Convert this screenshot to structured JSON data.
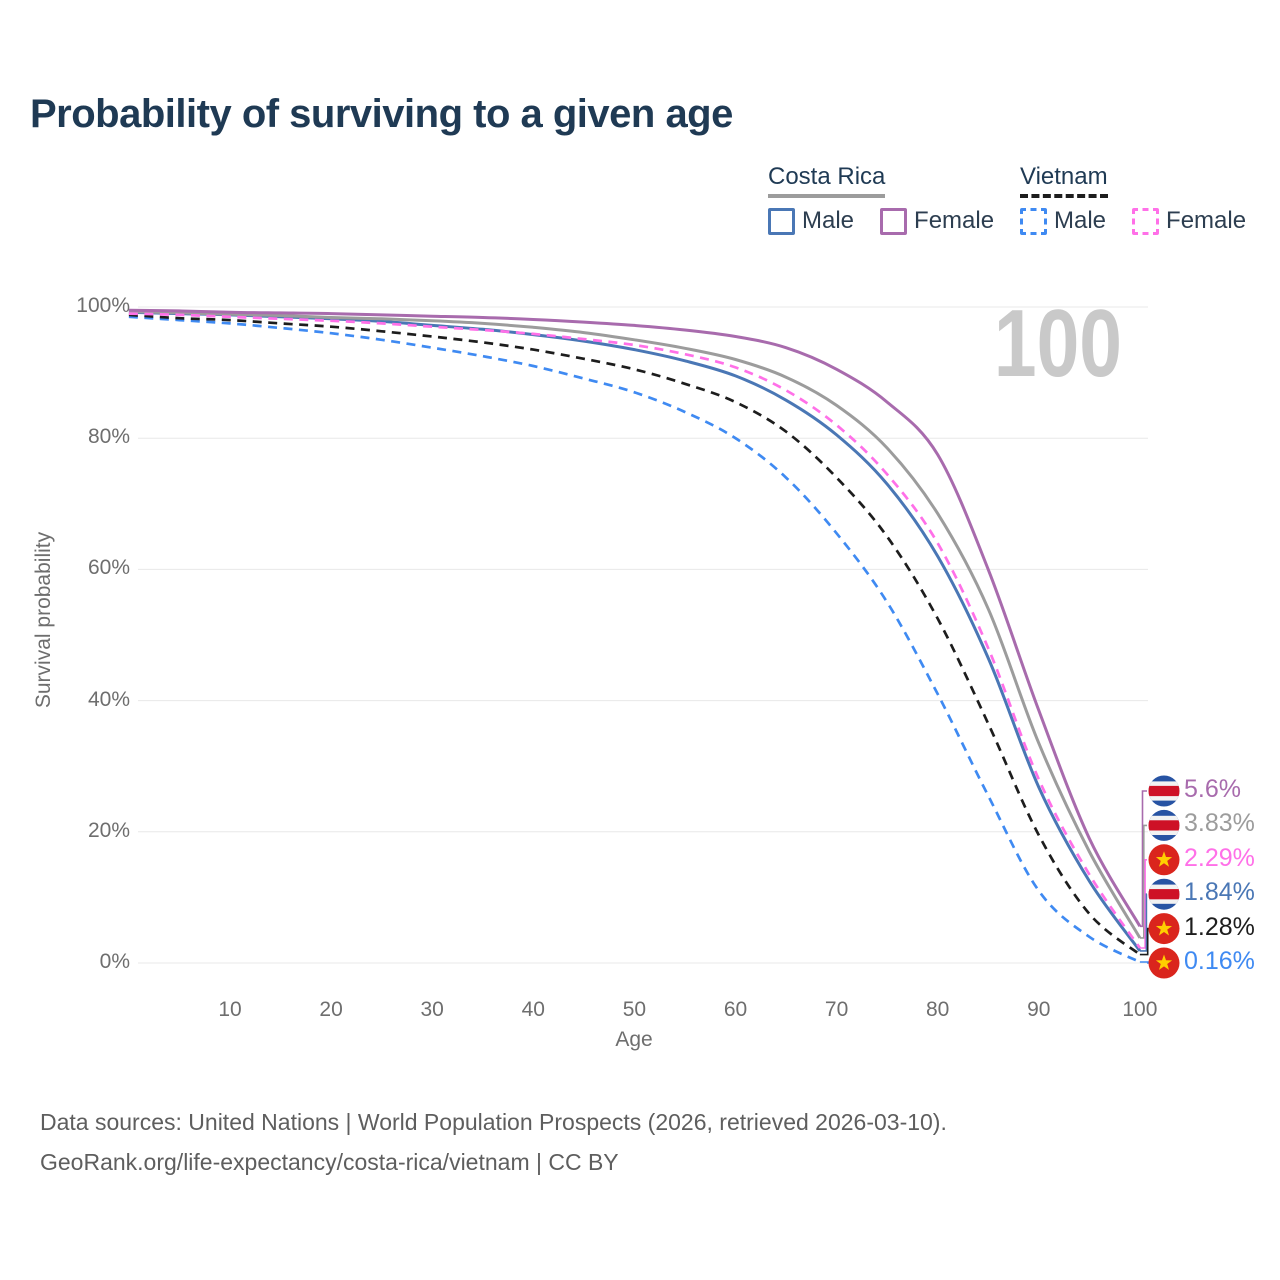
{
  "title": "Probability of surviving to a given age",
  "hover_age_label": "100",
  "legend": {
    "groups": [
      {
        "name": "Costa Rica",
        "line_style": "solid",
        "line_color": "#9c9c9c",
        "items": [
          {
            "label": "Male",
            "color": "#4a77b5",
            "style": "solid"
          },
          {
            "label": "Female",
            "color": "#a86bad",
            "style": "solid"
          }
        ]
      },
      {
        "name": "Vietnam",
        "line_style": "dashed",
        "line_color": "#1d1d1d",
        "items": [
          {
            "label": "Male",
            "color": "#3f8af2",
            "style": "dashed"
          },
          {
            "label": "Female",
            "color": "#ff70e8",
            "style": "dashed"
          }
        ]
      }
    ]
  },
  "chart_data": {
    "type": "line",
    "title": "Probability of surviving to a given age",
    "xlabel": "Age",
    "ylabel": "Survival probability",
    "xlim": [
      0,
      100
    ],
    "ylim": [
      0,
      100
    ],
    "grid": "horizontal",
    "legend_position": "top-right",
    "x_ticks": [
      10,
      20,
      30,
      40,
      50,
      60,
      70,
      80,
      90,
      100
    ],
    "y_ticks": [
      {
        "value": 0,
        "label": "0%"
      },
      {
        "value": 20,
        "label": "20%"
      },
      {
        "value": 40,
        "label": "40%"
      },
      {
        "value": 60,
        "label": "60%"
      },
      {
        "value": 80,
        "label": "80%"
      },
      {
        "value": 100,
        "label": "100%"
      }
    ],
    "x": [
      0,
      5,
      10,
      15,
      20,
      25,
      30,
      35,
      40,
      45,
      50,
      55,
      60,
      65,
      70,
      75,
      80,
      85,
      90,
      95,
      100
    ],
    "series": [
      {
        "name": "Costa Rica Male",
        "country": "Costa Rica",
        "sex": "Male",
        "color": "#4a77b5",
        "line_style": "solid",
        "values": [
          99.2,
          99.0,
          98.8,
          98.5,
          98.2,
          97.8,
          97.2,
          96.6,
          95.8,
          94.8,
          93.5,
          91.8,
          89.5,
          85.8,
          80.5,
          73.0,
          62.0,
          46.5,
          26.8,
          12.5,
          1.84
        ]
      },
      {
        "name": "Costa Rica",
        "country": "Costa Rica",
        "sex": "Both",
        "color": "#9c9c9c",
        "line_style": "solid",
        "values": [
          99.3,
          99.1,
          98.9,
          98.7,
          98.4,
          98.2,
          97.9,
          97.5,
          96.9,
          96.1,
          95.0,
          93.7,
          92.0,
          89.3,
          85.0,
          78.5,
          68.5,
          54.0,
          33.5,
          17.0,
          3.83
        ]
      },
      {
        "name": "Costa Rica Female",
        "country": "Costa Rica",
        "sex": "Female",
        "color": "#a86bad",
        "line_style": "solid",
        "values": [
          99.5,
          99.4,
          99.2,
          99.1,
          99.0,
          98.8,
          98.6,
          98.4,
          98.1,
          97.7,
          97.2,
          96.5,
          95.5,
          93.8,
          90.5,
          85.5,
          77.5,
          60.0,
          38.5,
          19.0,
          5.6
        ]
      },
      {
        "name": "Vietnam Male",
        "country": "Vietnam",
        "sex": "Male",
        "color": "#3f8af2",
        "line_style": "dashed",
        "values": [
          98.5,
          98.0,
          97.5,
          96.8,
          96.0,
          95.0,
          93.8,
          92.5,
          91.0,
          89.1,
          87.0,
          84.0,
          80.0,
          74.0,
          65.5,
          55.0,
          41.0,
          25.5,
          11.0,
          4.0,
          0.16
        ]
      },
      {
        "name": "Vietnam",
        "country": "Vietnam",
        "sex": "Both",
        "color": "#1d1d1d",
        "line_style": "dashed",
        "values": [
          98.8,
          98.3,
          98.0,
          97.5,
          97.0,
          96.3,
          95.5,
          94.6,
          93.5,
          92.1,
          90.5,
          88.3,
          85.5,
          81.0,
          74.0,
          65.0,
          52.5,
          36.5,
          19.5,
          7.5,
          1.28
        ]
      },
      {
        "name": "Vietnam Female",
        "country": "Vietnam",
        "sex": "Female",
        "color": "#ff70e8",
        "line_style": "dashed",
        "values": [
          99.0,
          98.8,
          98.5,
          98.2,
          97.9,
          97.5,
          97.0,
          96.5,
          95.9,
          95.1,
          94.2,
          92.8,
          90.8,
          87.3,
          82.0,
          74.5,
          64.0,
          48.0,
          28.0,
          13.5,
          2.29
        ]
      }
    ]
  },
  "end_labels": [
    {
      "text": "5.6%",
      "flag": "costa-rica",
      "color": "#a86bad",
      "series": "Costa Rica Female"
    },
    {
      "text": "3.83%",
      "flag": "costa-rica",
      "color": "#9c9c9c",
      "series": "Costa Rica"
    },
    {
      "text": "2.29%",
      "flag": "vietnam",
      "color": "#ff70e8",
      "series": "Vietnam Female"
    },
    {
      "text": "1.84%",
      "flag": "costa-rica",
      "color": "#4a77b5",
      "series": "Costa Rica Male"
    },
    {
      "text": "1.28%",
      "flag": "vietnam",
      "color": "#1d1d1d",
      "series": "Vietnam"
    },
    {
      "text": "0.16%",
      "flag": "vietnam",
      "color": "#3f8af2",
      "series": "Vietnam Male"
    }
  ],
  "flag_colors": {
    "costa_rica_blue": "#2753a3",
    "costa_rica_red": "#ce1126",
    "vietnam_red": "#da251d",
    "vietnam_star": "#ffcf00"
  },
  "footer": {
    "line1": "Data sources: United Nations | World Population Prospects (2026, retrieved 2026-03-10).",
    "line2": "GeoRank.org/life-expectancy/costa-rica/vietnam | CC BY"
  }
}
